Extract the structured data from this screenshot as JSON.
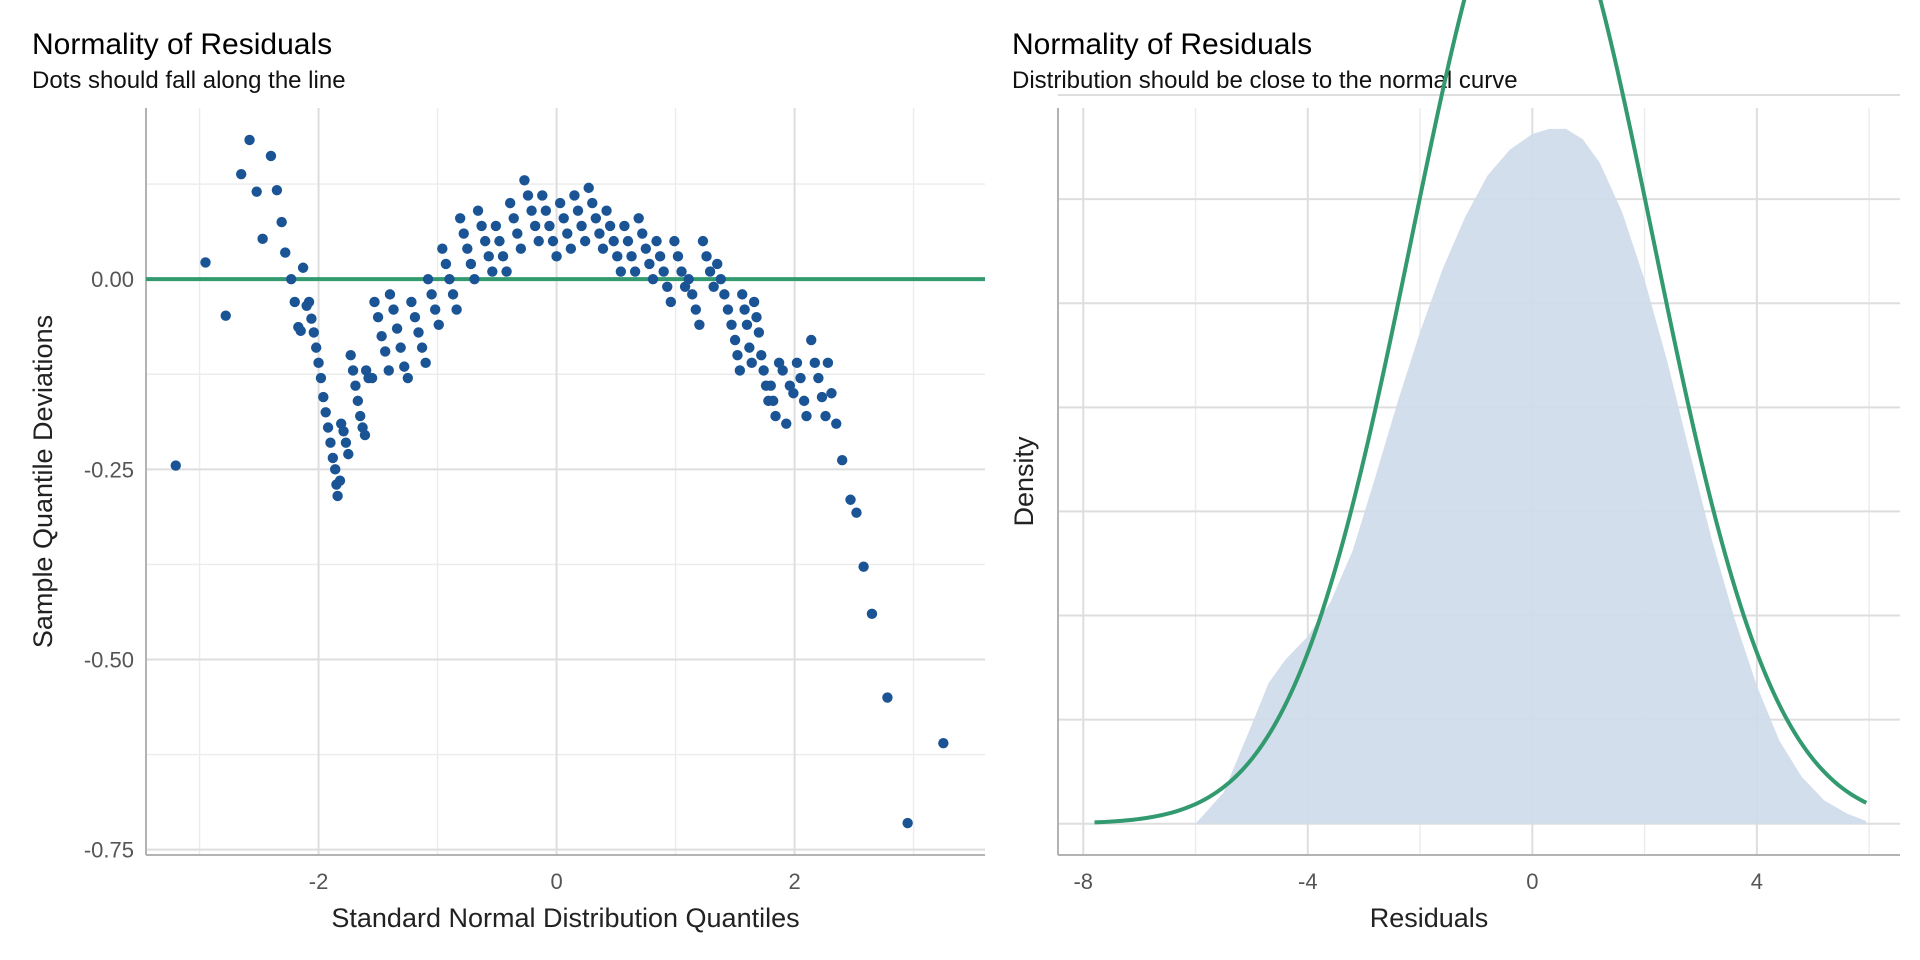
{
  "colors": {
    "points": "#1a5495",
    "reference_line": "#339a70",
    "density_fill": "#cfdbea",
    "normal_curve": "#339a70"
  },
  "chart_data": [
    {
      "type": "scatter",
      "title": "Normality of Residuals",
      "subtitle": "Dots should fall along the line",
      "xlabel": "Standard Normal Distribution Quantiles",
      "ylabel": "Sample Quantile Deviations",
      "xlim": [
        -3.45,
        3.6
      ],
      "ylim": [
        -0.757,
        0.225
      ],
      "x_ticks": [
        -2,
        0,
        2
      ],
      "x_tick_labels": [
        "-2",
        "0",
        "2"
      ],
      "y_ticks": [
        0,
        -0.25,
        -0.5,
        -0.75
      ],
      "y_tick_labels": [
        "0.00",
        "-0.25",
        "-0.50",
        "-0.75"
      ],
      "reference_line": {
        "y": 0
      },
      "grid": true,
      "points": [
        [
          -3.2,
          -0.245
        ],
        [
          -2.95,
          0.022
        ],
        [
          -2.78,
          -0.048
        ],
        [
          -2.65,
          0.138
        ],
        [
          -2.58,
          0.183
        ],
        [
          -2.52,
          0.115
        ],
        [
          -2.47,
          0.053
        ],
        [
          -2.4,
          0.162
        ],
        [
          -2.35,
          0.117
        ],
        [
          -2.31,
          0.075
        ],
        [
          -2.28,
          0.035
        ],
        [
          -2.23,
          0.0
        ],
        [
          -2.2,
          -0.03
        ],
        [
          -2.17,
          -0.063
        ],
        [
          -2.15,
          -0.068
        ],
        [
          -2.13,
          0.015
        ],
        [
          -2.1,
          -0.035
        ],
        [
          -2.08,
          -0.03
        ],
        [
          -2.06,
          -0.052
        ],
        [
          -2.04,
          -0.07
        ],
        [
          -2.02,
          -0.09
        ],
        [
          -2.0,
          -0.11
        ],
        [
          -1.98,
          -0.13
        ],
        [
          -1.96,
          -0.155
        ],
        [
          -1.94,
          -0.175
        ],
        [
          -1.92,
          -0.195
        ],
        [
          -1.9,
          -0.215
        ],
        [
          -1.88,
          -0.235
        ],
        [
          -1.86,
          -0.25
        ],
        [
          -1.85,
          -0.27
        ],
        [
          -1.84,
          -0.285
        ],
        [
          -1.82,
          -0.265
        ],
        [
          -1.81,
          -0.19
        ],
        [
          -1.79,
          -0.2
        ],
        [
          -1.77,
          -0.215
        ],
        [
          -1.75,
          -0.23
        ],
        [
          -1.73,
          -0.1
        ],
        [
          -1.71,
          -0.12
        ],
        [
          -1.69,
          -0.14
        ],
        [
          -1.67,
          -0.16
        ],
        [
          -1.65,
          -0.18
        ],
        [
          -1.63,
          -0.195
        ],
        [
          -1.61,
          -0.205
        ],
        [
          -1.6,
          -0.12
        ],
        [
          -1.58,
          -0.13
        ],
        [
          -1.55,
          -0.13
        ],
        [
          -1.53,
          -0.03
        ],
        [
          -1.5,
          -0.05
        ],
        [
          -1.47,
          -0.075
        ],
        [
          -1.44,
          -0.095
        ],
        [
          -1.41,
          -0.12
        ],
        [
          -1.4,
          -0.02
        ],
        [
          -1.37,
          -0.04
        ],
        [
          -1.34,
          -0.065
        ],
        [
          -1.31,
          -0.09
        ],
        [
          -1.28,
          -0.115
        ],
        [
          -1.25,
          -0.13
        ],
        [
          -1.22,
          -0.03
        ],
        [
          -1.19,
          -0.05
        ],
        [
          -1.16,
          -0.07
        ],
        [
          -1.13,
          -0.09
        ],
        [
          -1.1,
          -0.11
        ],
        [
          -1.08,
          0.0
        ],
        [
          -1.05,
          -0.02
        ],
        [
          -1.02,
          -0.04
        ],
        [
          -0.99,
          -0.06
        ],
        [
          -0.96,
          0.04
        ],
        [
          -0.93,
          0.02
        ],
        [
          -0.9,
          0.0
        ],
        [
          -0.87,
          -0.02
        ],
        [
          -0.84,
          -0.04
        ],
        [
          -0.81,
          0.08
        ],
        [
          -0.78,
          0.06
        ],
        [
          -0.75,
          0.04
        ],
        [
          -0.72,
          0.02
        ],
        [
          -0.69,
          0.0
        ],
        [
          -0.66,
          0.09
        ],
        [
          -0.63,
          0.07
        ],
        [
          -0.6,
          0.05
        ],
        [
          -0.57,
          0.03
        ],
        [
          -0.54,
          0.01
        ],
        [
          -0.51,
          0.07
        ],
        [
          -0.48,
          0.05
        ],
        [
          -0.45,
          0.03
        ],
        [
          -0.42,
          0.01
        ],
        [
          -0.39,
          0.1
        ],
        [
          -0.36,
          0.08
        ],
        [
          -0.33,
          0.06
        ],
        [
          -0.3,
          0.04
        ],
        [
          -0.27,
          0.13
        ],
        [
          -0.24,
          0.11
        ],
        [
          -0.21,
          0.09
        ],
        [
          -0.18,
          0.07
        ],
        [
          -0.15,
          0.05
        ],
        [
          -0.12,
          0.11
        ],
        [
          -0.09,
          0.09
        ],
        [
          -0.06,
          0.07
        ],
        [
          -0.03,
          0.05
        ],
        [
          0.0,
          0.03
        ],
        [
          0.03,
          0.1
        ],
        [
          0.06,
          0.08
        ],
        [
          0.09,
          0.06
        ],
        [
          0.12,
          0.04
        ],
        [
          0.15,
          0.11
        ],
        [
          0.18,
          0.09
        ],
        [
          0.21,
          0.07
        ],
        [
          0.24,
          0.05
        ],
        [
          0.27,
          0.12
        ],
        [
          0.3,
          0.1
        ],
        [
          0.33,
          0.08
        ],
        [
          0.36,
          0.06
        ],
        [
          0.39,
          0.04
        ],
        [
          0.42,
          0.09
        ],
        [
          0.45,
          0.07
        ],
        [
          0.48,
          0.05
        ],
        [
          0.51,
          0.03
        ],
        [
          0.54,
          0.01
        ],
        [
          0.57,
          0.07
        ],
        [
          0.6,
          0.05
        ],
        [
          0.63,
          0.03
        ],
        [
          0.66,
          0.01
        ],
        [
          0.69,
          0.08
        ],
        [
          0.72,
          0.06
        ],
        [
          0.75,
          0.04
        ],
        [
          0.78,
          0.02
        ],
        [
          0.81,
          0.0
        ],
        [
          0.84,
          0.05
        ],
        [
          0.87,
          0.03
        ],
        [
          0.9,
          0.01
        ],
        [
          0.93,
          -0.01
        ],
        [
          0.96,
          -0.03
        ],
        [
          0.99,
          0.05
        ],
        [
          1.02,
          0.03
        ],
        [
          1.05,
          0.01
        ],
        [
          1.08,
          -0.01
        ],
        [
          1.11,
          0.0
        ],
        [
          1.14,
          -0.02
        ],
        [
          1.17,
          -0.04
        ],
        [
          1.2,
          -0.06
        ],
        [
          1.23,
          0.05
        ],
        [
          1.26,
          0.03
        ],
        [
          1.29,
          0.01
        ],
        [
          1.32,
          -0.01
        ],
        [
          1.35,
          0.02
        ],
        [
          1.38,
          0.0
        ],
        [
          1.41,
          -0.02
        ],
        [
          1.44,
          -0.04
        ],
        [
          1.47,
          -0.06
        ],
        [
          1.5,
          -0.08
        ],
        [
          1.52,
          -0.1
        ],
        [
          1.54,
          -0.12
        ],
        [
          1.56,
          -0.02
        ],
        [
          1.58,
          -0.04
        ],
        [
          1.6,
          -0.06
        ],
        [
          1.62,
          -0.09
        ],
        [
          1.64,
          -0.11
        ],
        [
          1.66,
          -0.03
        ],
        [
          1.68,
          -0.05
        ],
        [
          1.7,
          -0.07
        ],
        [
          1.72,
          -0.1
        ],
        [
          1.74,
          -0.12
        ],
        [
          1.76,
          -0.14
        ],
        [
          1.78,
          -0.16
        ],
        [
          1.8,
          -0.14
        ],
        [
          1.82,
          -0.16
        ],
        [
          1.84,
          -0.18
        ],
        [
          1.87,
          -0.11
        ],
        [
          1.9,
          -0.12
        ],
        [
          1.93,
          -0.19
        ],
        [
          1.96,
          -0.14
        ],
        [
          1.99,
          -0.15
        ],
        [
          2.02,
          -0.11
        ],
        [
          2.05,
          -0.13
        ],
        [
          2.08,
          -0.16
        ],
        [
          2.1,
          -0.18
        ],
        [
          2.14,
          -0.08
        ],
        [
          2.17,
          -0.11
        ],
        [
          2.2,
          -0.13
        ],
        [
          2.23,
          -0.155
        ],
        [
          2.26,
          -0.18
        ],
        [
          2.28,
          -0.11
        ],
        [
          2.31,
          -0.15
        ],
        [
          2.35,
          -0.19
        ],
        [
          2.4,
          -0.238
        ],
        [
          2.47,
          -0.29
        ],
        [
          2.52,
          -0.307
        ],
        [
          2.58,
          -0.378
        ],
        [
          2.65,
          -0.44
        ],
        [
          2.78,
          -0.55
        ],
        [
          2.95,
          -0.715
        ],
        [
          3.25,
          -0.61
        ]
      ]
    },
    {
      "type": "area",
      "title": "Normality of Residuals",
      "subtitle": "Distribution should be close to the normal curve",
      "xlabel": "Residuals",
      "ylabel": "Density",
      "xlim": [
        -8.45,
        6.55
      ],
      "ylim": [
        -0.006,
        0.1375
      ],
      "x_ticks": [
        -8,
        -4,
        0,
        4
      ],
      "x_tick_labels": [
        "-8",
        "-4",
        "0",
        "4"
      ],
      "y_tick_labels": [],
      "grid": true,
      "density": {
        "x": [
          -6.0,
          -5.5,
          -5.0,
          -4.7,
          -4.4,
          -4.0,
          -3.6,
          -3.2,
          -2.8,
          -2.4,
          -2.0,
          -1.6,
          -1.2,
          -0.8,
          -0.4,
          0.0,
          0.3,
          0.6,
          0.9,
          1.2,
          1.6,
          2.0,
          2.4,
          2.8,
          3.2,
          3.6,
          4.0,
          4.4,
          4.8,
          5.2,
          5.6,
          5.95
        ],
        "y": [
          0.0,
          0.006,
          0.019,
          0.027,
          0.0315,
          0.036,
          0.0425,
          0.0525,
          0.0665,
          0.081,
          0.0945,
          0.1065,
          0.1165,
          0.1245,
          0.1295,
          0.1325,
          0.1335,
          0.1335,
          0.1315,
          0.127,
          0.1175,
          0.1045,
          0.089,
          0.0715,
          0.0545,
          0.0395,
          0.0265,
          0.016,
          0.009,
          0.0045,
          0.002,
          0.0005
        ]
      },
      "normal_curve": {
        "mean": 0,
        "sd": 2.15,
        "x_range": [
          -7.8,
          5.95
        ]
      }
    }
  ]
}
